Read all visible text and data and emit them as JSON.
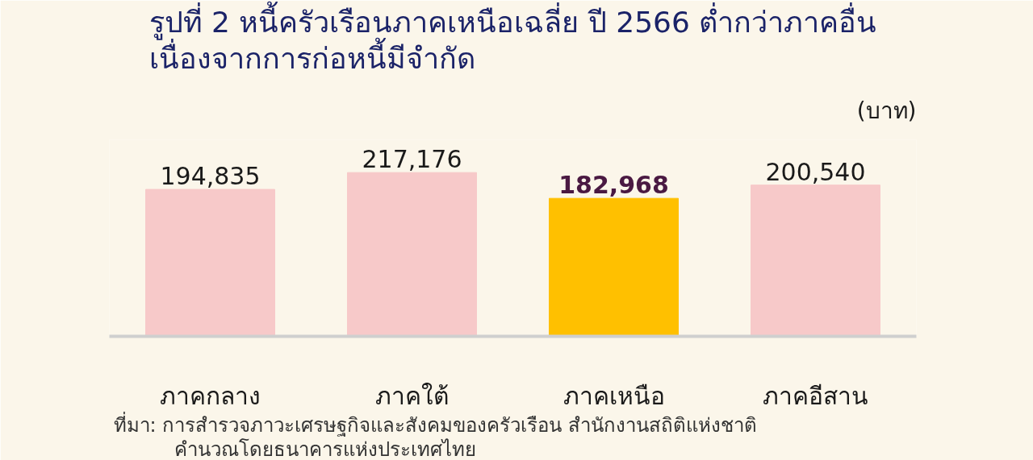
{
  "chart_data": {
    "type": "bar",
    "title": "รูปที่ 2 หนี้ครัวเรือนภาคเหนือเฉลี่ย ปี 2566 ต่ำกว่าภาคอื่น\nเนื่องจากการก่อหนี้มีจำกัด",
    "ylabel": "(บาท)",
    "categories": [
      "ภาคกลาง",
      "ภาคใต้",
      "ภาคเหนือ",
      "ภาคอีสาน"
    ],
    "values": [
      194835,
      217176,
      182968,
      200540
    ],
    "colors": [
      "#f7c9c9",
      "#f7c9c9",
      "#ffc000",
      "#f7c9c9"
    ],
    "value_labels": [
      "194,835",
      "217,176",
      "182,968",
      "200,540"
    ],
    "tick_labels": "x",
    "grid": false,
    "annotations": [
      "ที่มา: การสำรวจภาวะเศรษฐกิจและสังคมของครัวเรือน สำนักงานสถิติแห่งชาติ",
      "คำนวณโดยธนาคารแห่งประเทศไทย"
    ]
  }
}
